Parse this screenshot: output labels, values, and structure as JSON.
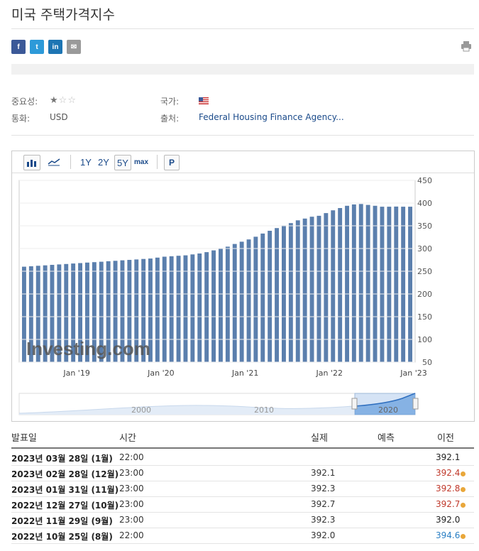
{
  "page": {
    "title": "미국 주택가격지수"
  },
  "share": {
    "facebook": "f",
    "twitter": "t",
    "linkedin": "in",
    "email": "✉"
  },
  "meta": {
    "importance_label": "중요성:",
    "importance_stars": 1,
    "country_label": "국가:",
    "currency_label": "통화:",
    "currency_value": "USD",
    "source_label": "출처:",
    "source_value": "Federal Housing Finance Agency..."
  },
  "toolbar": {
    "r1y": "1Y",
    "r2y": "2Y",
    "r5y": "5Y",
    "rmax": "max",
    "p": "P"
  },
  "chart_data": {
    "type": "bar",
    "values": [
      260,
      261,
      262,
      263,
      264,
      265,
      266,
      267,
      268,
      269,
      270,
      271,
      272,
      273,
      274,
      275,
      276,
      277,
      278,
      280,
      282,
      283,
      284,
      285,
      287,
      289,
      292,
      296,
      300,
      304,
      310,
      315,
      320,
      326,
      333,
      339,
      345,
      351,
      356,
      362,
      366,
      370,
      372,
      378,
      384,
      389,
      394,
      397,
      398,
      396,
      394,
      392,
      392,
      392.3,
      392.1,
      392.1
    ],
    "ylim": [
      50,
      450
    ],
    "yticks": [
      450,
      400,
      350,
      300,
      250,
      200,
      150,
      100,
      50
    ],
    "xticks": [
      {
        "label": "Jan '19",
        "index": 8
      },
      {
        "label": "Jan '20",
        "index": 20
      },
      {
        "label": "Jan '21",
        "index": 32
      },
      {
        "label": "Jan '22",
        "index": 44
      },
      {
        "label": "Jan '23",
        "index": 56
      }
    ],
    "watermark": "Investing.com",
    "color": "#5b7fad",
    "navigator_labels": [
      "2000",
      "2010",
      "2020"
    ]
  },
  "table": {
    "headers": {
      "date": "발표일",
      "time": "시간",
      "actual": "실제",
      "forecast": "예측",
      "previous": "이전"
    },
    "rows": [
      {
        "date": "2023년 03월 28일 (1월)",
        "time": "22:00",
        "actual": "",
        "forecast": "",
        "previous": "392.1",
        "prev_color": "#222",
        "dot": false
      },
      {
        "date": "2023년 02월 28일 (12월)",
        "time": "23:00",
        "actual": "392.1",
        "forecast": "",
        "previous": "392.4",
        "prev_color": "#c0392b",
        "dot": true
      },
      {
        "date": "2023년 01월 31일 (11월)",
        "time": "23:00",
        "actual": "392.3",
        "forecast": "",
        "previous": "392.8",
        "prev_color": "#c0392b",
        "dot": true
      },
      {
        "date": "2022년 12월 27일 (10월)",
        "time": "23:00",
        "actual": "392.7",
        "forecast": "",
        "previous": "392.7",
        "prev_color": "#c0392b",
        "dot": true
      },
      {
        "date": "2022년 11월 29일 (9월)",
        "time": "23:00",
        "actual": "392.3",
        "forecast": "",
        "previous": "392.0",
        "prev_color": "#222",
        "dot": false
      },
      {
        "date": "2022년 10월 25일 (8월)",
        "time": "22:00",
        "actual": "392.0",
        "forecast": "",
        "previous": "394.6",
        "prev_color": "#2a7fc4",
        "dot": true
      }
    ]
  }
}
